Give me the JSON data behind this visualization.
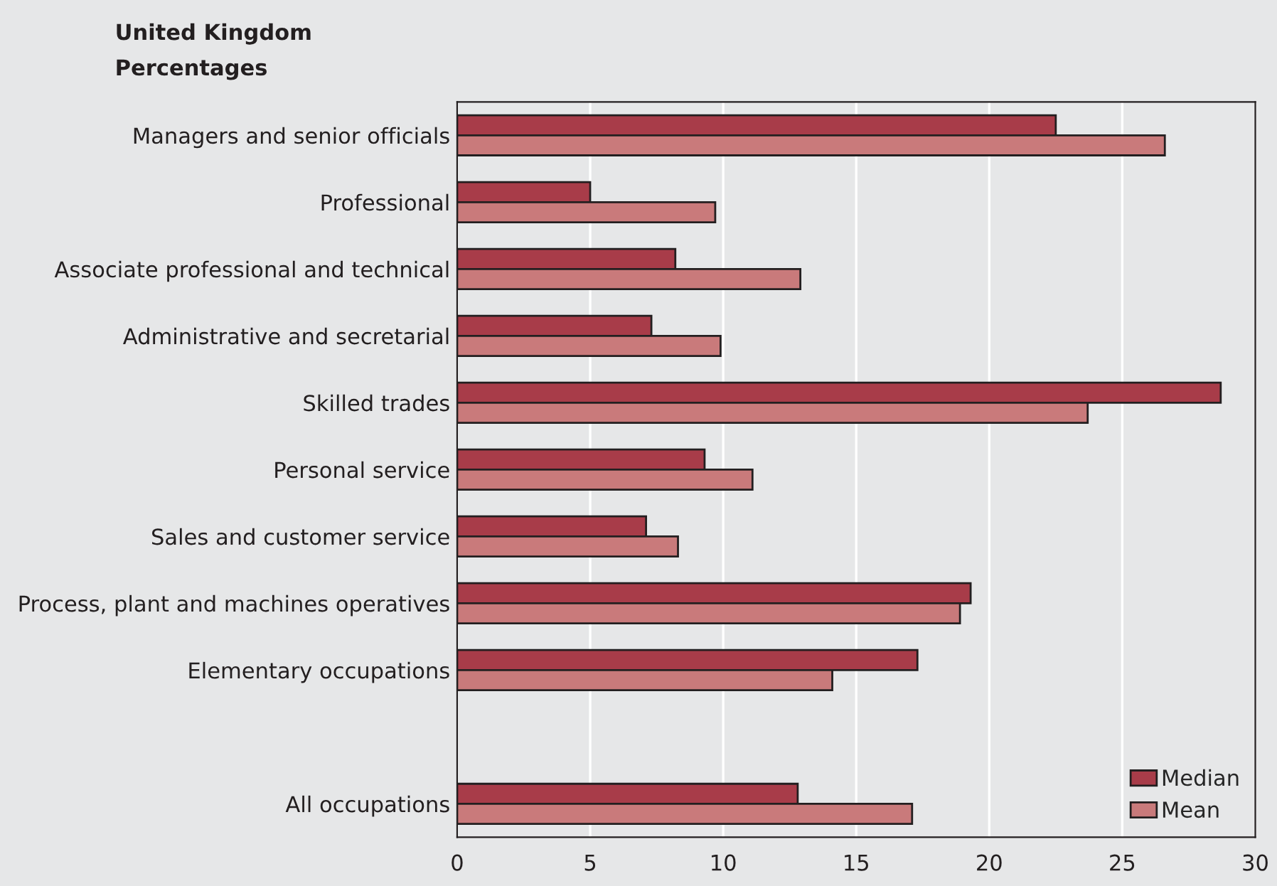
{
  "chart_data": {
    "type": "bar",
    "orientation": "horizontal",
    "title": "United Kingdom",
    "subtitle": "Percentages",
    "categories": [
      "Managers and senior officials",
      "Professional",
      "Associate professional and technical",
      "Administrative and secretarial",
      "Skilled trades",
      "Personal service",
      "Sales and customer service",
      "Process, plant and machines operatives",
      "Elementary occupations",
      null,
      "All occupations"
    ],
    "series": [
      {
        "name": "Median",
        "color": "#a83c49",
        "values": [
          22.5,
          5.0,
          8.2,
          7.3,
          28.7,
          9.3,
          7.1,
          19.3,
          17.3,
          null,
          12.8
        ]
      },
      {
        "name": "Mean",
        "color": "#c97a7b",
        "values": [
          26.6,
          9.7,
          12.9,
          9.9,
          23.7,
          11.1,
          8.3,
          18.9,
          14.1,
          null,
          17.1
        ]
      }
    ],
    "xlim": [
      0,
      30
    ],
    "xticks": [
      0,
      5,
      10,
      15,
      20,
      25,
      30
    ],
    "grid": "x",
    "legend": "bottom right"
  }
}
